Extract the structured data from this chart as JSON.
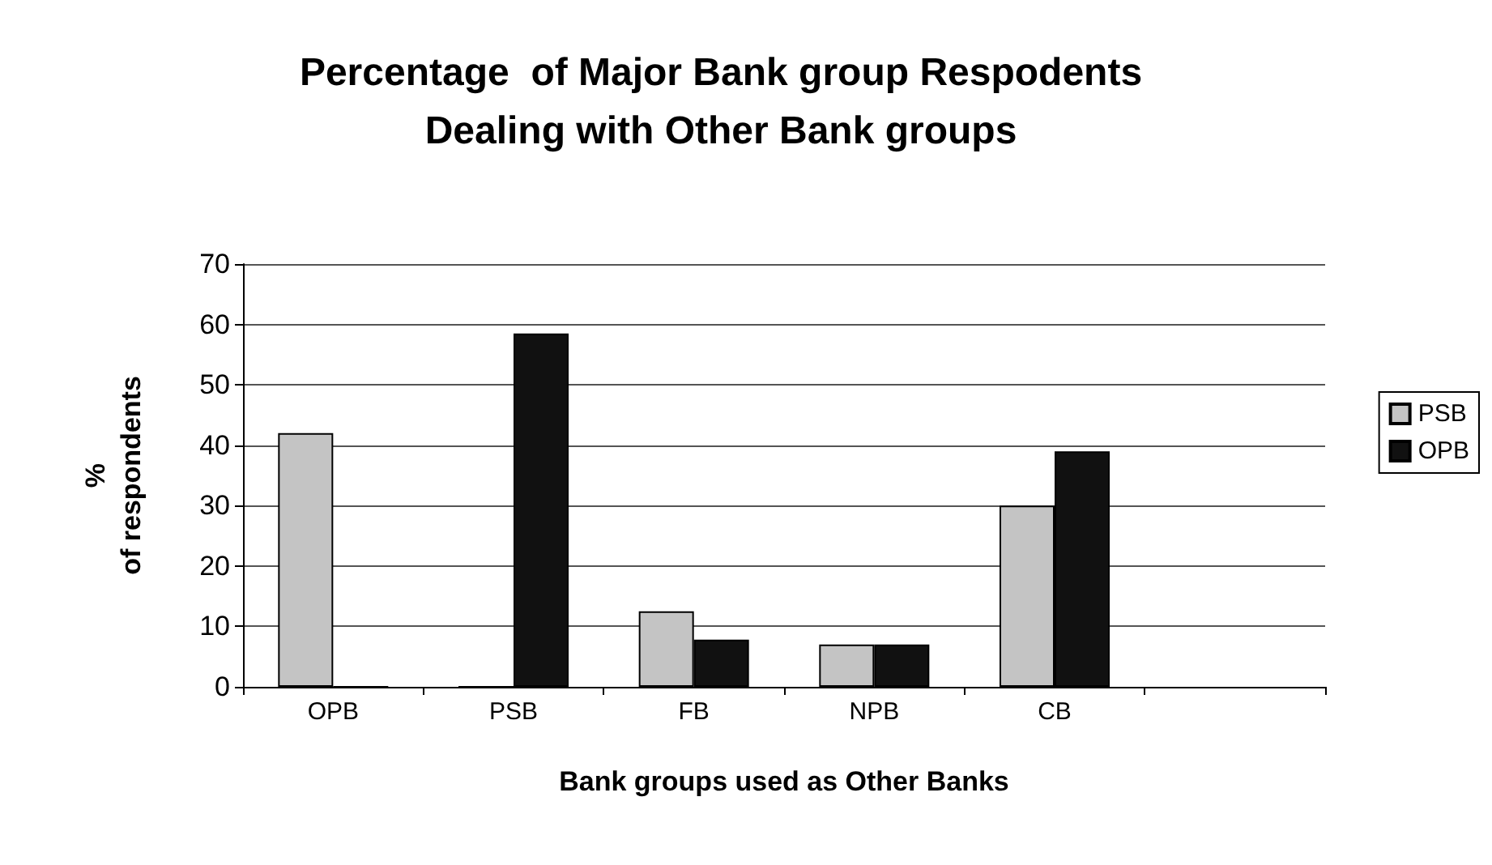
{
  "chart_data": {
    "type": "bar",
    "title": "Percentage  of Major Bank group Respodents\nDealing with Other Bank groups",
    "xlabel": "Bank groups used as Other Banks",
    "ylabel": "%\nof respondents",
    "categories": [
      "OPB",
      "PSB",
      "FB",
      "NPB",
      "CB",
      null
    ],
    "series": [
      {
        "name": "PSB",
        "color": "#c4c4c4",
        "values": [
          42,
          0,
          12.5,
          7,
          30,
          null
        ]
      },
      {
        "name": "OPB",
        "color": "#111111",
        "values": [
          0,
          58.5,
          7.8,
          7,
          39,
          null
        ]
      }
    ],
    "ylim": [
      0,
      70
    ],
    "yticks": [
      0,
      10,
      20,
      30,
      40,
      50,
      60,
      70
    ],
    "grid": "y",
    "legend": "right"
  }
}
